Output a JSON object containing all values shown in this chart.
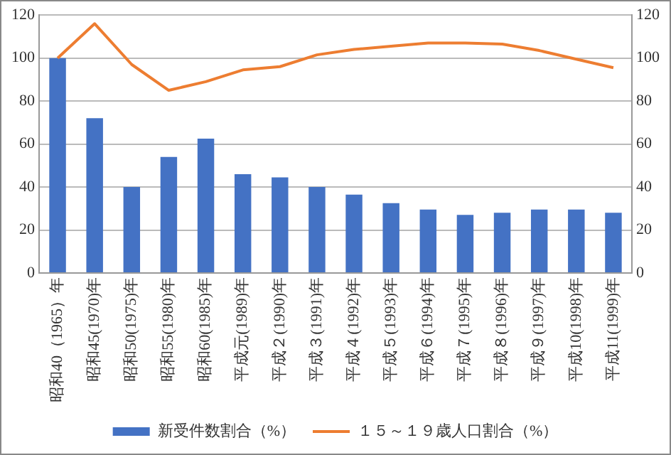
{
  "chart_data": {
    "type": "bar",
    "categories": [
      "昭和40（1965）年",
      "昭和45(1970)年",
      "昭和50(1975)年",
      "昭和55(1980)年",
      "昭和60(1985)年",
      "平成元(1989)年",
      "平成２(1990)年",
      "平成３(1991)年",
      "平成４(1992)年",
      "平成５(1993)年",
      "平成６(1994)年",
      "平成７(1995)年",
      "平成８(1996)年",
      "平成９(1997)年",
      "平成10(1998)年",
      "平成11(1999)年"
    ],
    "series": [
      {
        "name": "新受件数割合（%）",
        "color": "#4472c4",
        "values": [
          100,
          72,
          40,
          54,
          62.5,
          46,
          44.5,
          40,
          36.5,
          32.5,
          29.5,
          27,
          28,
          29.5,
          29.5,
          28
        ]
      },
      {
        "name": "１５～１９歳人口割合（%）",
        "type": "line",
        "axis": "y2",
        "color": "#ed7d31",
        "marker": "none",
        "values": [
          100,
          116,
          97,
          85,
          89,
          94.5,
          96,
          101.5,
          104,
          105.5,
          107,
          107,
          106.5,
          103.5,
          99.5,
          95.5
        ]
      }
    ],
    "ylim": [
      0,
      120
    ],
    "yticks": [
      0,
      20,
      40,
      60,
      80,
      100,
      120
    ],
    "y2lim": [
      0,
      120
    ],
    "y2ticks": [
      0,
      20,
      40,
      60,
      80,
      100,
      120
    ],
    "grid": "y",
    "legend": "bottom"
  }
}
